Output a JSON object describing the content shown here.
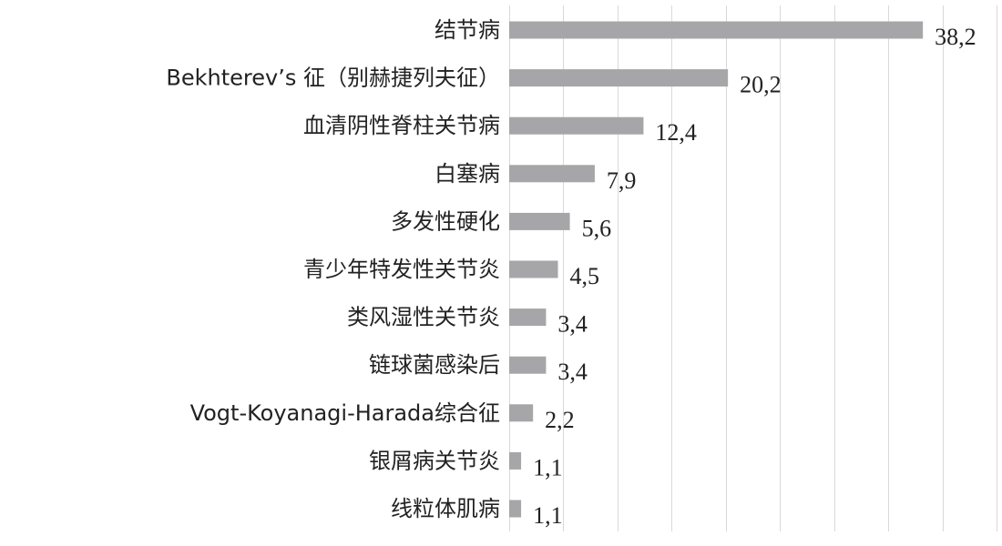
{
  "chart_data": {
    "type": "bar",
    "orientation": "horizontal",
    "title": "",
    "xlabel": "",
    "ylabel": "",
    "categories": [
      "结节病",
      "Bekhterev’s 征（别赫捷列夫征）",
      "血清阴性脊柱关节病",
      "白塞病",
      "多发性硬化",
      "青少年特发性关节炎",
      "类风湿性关节炎",
      "链球菌感染后",
      "Vogt-Koyanagi-Harada综合征",
      "银屑病关节炎",
      "线粒体肌病"
    ],
    "values": [
      38.2,
      20.2,
      12.4,
      7.9,
      5.6,
      4.5,
      3.4,
      3.4,
      2.2,
      1.1,
      1.1
    ],
    "value_labels": [
      "38,2",
      "20,2",
      "12,4",
      "7,9",
      "5,6",
      "4,5",
      "3,4",
      "3,4",
      "2,2",
      "1,1",
      "1,1"
    ],
    "xlim": [
      0,
      45
    ],
    "grid": true,
    "legend": "none",
    "bar_color": "#a6a6a8",
    "grid_color": "#d9d9d9"
  }
}
